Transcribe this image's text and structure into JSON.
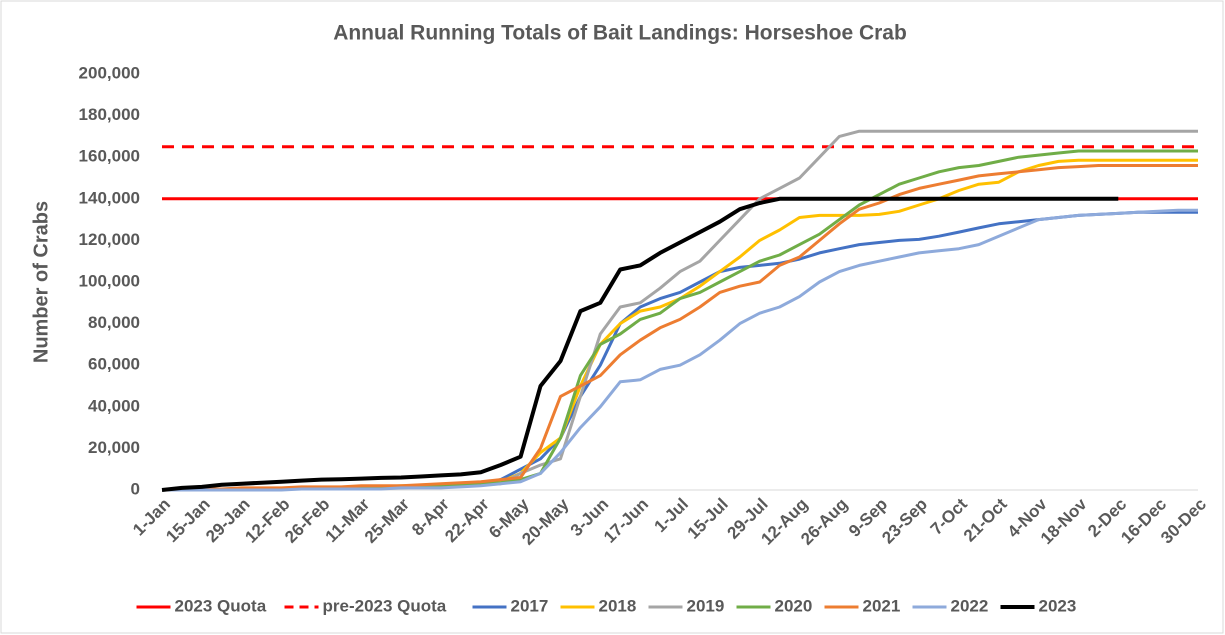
{
  "chart_data": {
    "type": "line",
    "title": "Annual Running Totals of Bait Landings: Horseshoe Crab",
    "y_label": "Number of Crabs",
    "categories": [
      "1-Jan",
      null,
      "15-Jan",
      null,
      "29-Jan",
      null,
      "12-Feb",
      null,
      "26-Feb",
      null,
      "11-Mar",
      null,
      "25-Mar",
      null,
      "8-Apr",
      null,
      "22-Apr",
      null,
      "6-May",
      null,
      "20-May",
      null,
      "3-Jun",
      null,
      "17-Jun",
      null,
      "1-Jul",
      null,
      "15-Jul",
      null,
      "29-Jul",
      null,
      "12-Aug",
      null,
      "26-Aug",
      null,
      "9-Sep",
      null,
      "23-Sep",
      null,
      "7-Oct",
      null,
      "21-Oct",
      null,
      "4-Nov",
      null,
      "18-Nov",
      null,
      "2-Dec",
      null,
      "16-Dec",
      null,
      "30-Dec"
    ],
    "ylim": [
      0,
      200000
    ],
    "yticks": [
      0,
      {
        "value": 20000,
        "label": "20,000"
      },
      {
        "value": 40000,
        "label": "40,000"
      },
      {
        "value": 60000,
        "label": "60,000"
      },
      {
        "value": 80000,
        "label": "80,000"
      },
      {
        "value": 100000,
        "label": "100,000"
      },
      {
        "value": 120000,
        "label": "120,000"
      },
      {
        "value": 140000,
        "label": "140,000"
      },
      {
        "value": 160000,
        "label": "160,000"
      },
      {
        "value": 180000,
        "label": "180,000"
      },
      {
        "value": 200000,
        "label": "200,000"
      }
    ],
    "grid": false,
    "legend": "bottom",
    "series": [
      {
        "name": "2023 Quota",
        "color": "#ff0000",
        "value": 140000,
        "dash": false
      },
      {
        "name": "pre-2023 Quota",
        "color": "#ff0000",
        "value": 165000,
        "dash": true
      },
      {
        "name": "2017",
        "color": "#4472c4",
        "values": [
          0,
          0,
          0,
          0,
          500,
          500,
          500,
          500,
          1000,
          1000,
          1000,
          1500,
          1500,
          2000,
          2000,
          2500,
          3000,
          5000,
          10000,
          15000,
          25000,
          45000,
          60000,
          80000,
          88000,
          92000,
          95000,
          100000,
          105000,
          107000,
          108000,
          109000,
          111000,
          114000,
          116000,
          118000,
          119000,
          120000,
          120500,
          122000,
          124000,
          126000,
          128000,
          129000,
          130000,
          131000,
          132000,
          132500,
          133000,
          133500,
          133500,
          133500,
          133500
        ]
      },
      {
        "name": "2018",
        "color": "#ffc000",
        "values": [
          0,
          0,
          0,
          500,
          500,
          500,
          500,
          1000,
          1000,
          1000,
          1500,
          1500,
          2000,
          2000,
          2500,
          3000,
          3500,
          4000,
          8000,
          18000,
          25000,
          50000,
          70000,
          80000,
          86000,
          88000,
          92000,
          98000,
          105000,
          112000,
          120000,
          125000,
          131000,
          132000,
          132000,
          132000,
          132500,
          134000,
          137000,
          140000,
          144000,
          147000,
          148000,
          153000,
          156000,
          158000,
          158500,
          158500,
          158500,
          158500,
          158500,
          158500,
          158500
        ]
      },
      {
        "name": "2019",
        "color": "#a5a5a5",
        "values": [
          0,
          0,
          0,
          0,
          0,
          500,
          500,
          500,
          500,
          500,
          1000,
          1000,
          1000,
          1500,
          1500,
          2000,
          2500,
          3000,
          8000,
          12000,
          15000,
          45000,
          75000,
          88000,
          90000,
          97000,
          105000,
          110000,
          120000,
          130000,
          140000,
          145000,
          150000,
          160000,
          170000,
          172500,
          172500,
          172500,
          172500,
          172500,
          172500,
          172500,
          172500,
          172500,
          172500,
          172500,
          172500,
          172500,
          172500,
          172500,
          172500,
          172500,
          172500
        ]
      },
      {
        "name": "2020",
        "color": "#70ad47",
        "values": [
          0,
          0,
          0,
          0,
          500,
          500,
          500,
          500,
          500,
          1000,
          1000,
          1000,
          1500,
          1500,
          2000,
          2500,
          3000,
          3500,
          5000,
          8000,
          25000,
          55000,
          70000,
          75000,
          82000,
          85000,
          92000,
          95000,
          100000,
          105000,
          110000,
          113000,
          118000,
          123000,
          130000,
          137000,
          142000,
          147000,
          150000,
          153000,
          155000,
          156000,
          158000,
          160000,
          161000,
          162000,
          163000,
          163000,
          163000,
          163000,
          163000,
          163000,
          163000
        ]
      },
      {
        "name": "2021",
        "color": "#ed7d31",
        "values": [
          0,
          0,
          500,
          500,
          1000,
          1000,
          1000,
          1500,
          1500,
          1500,
          2000,
          2000,
          2000,
          2500,
          3000,
          3500,
          4000,
          5000,
          6000,
          20000,
          45000,
          50000,
          55000,
          65000,
          72000,
          78000,
          82000,
          88000,
          95000,
          98000,
          100000,
          108000,
          112000,
          120000,
          128000,
          135000,
          138000,
          142000,
          145000,
          147000,
          149000,
          151000,
          152000,
          153000,
          154000,
          155000,
          155500,
          156000,
          156000,
          156000,
          156000,
          156000,
          156000
        ]
      },
      {
        "name": "2022",
        "color": "#8eaadb",
        "values": [
          0,
          0,
          0,
          0,
          0,
          0,
          0,
          500,
          500,
          500,
          500,
          500,
          1000,
          1000,
          1000,
          1500,
          2000,
          3000,
          4000,
          8000,
          18000,
          30000,
          40000,
          52000,
          53000,
          58000,
          60000,
          65000,
          72000,
          80000,
          85000,
          88000,
          93000,
          100000,
          105000,
          108000,
          110000,
          112000,
          114000,
          115000,
          116000,
          118000,
          122000,
          126000,
          130000,
          131000,
          132000,
          132500,
          133000,
          133500,
          134000,
          134500,
          134500
        ]
      },
      {
        "name": "2023",
        "color": "#000000",
        "width": 4,
        "values": [
          0,
          1000,
          1500,
          2500,
          3000,
          3500,
          4000,
          4500,
          5000,
          5200,
          5500,
          5800,
          6000,
          6500,
          7000,
          7500,
          8500,
          12000,
          16000,
          50000,
          62000,
          86000,
          90000,
          106000,
          108000,
          114000,
          119000,
          124000,
          129000,
          135000,
          138000,
          140000,
          140000,
          140000,
          140000,
          140000,
          140000,
          140000,
          140000,
          140000,
          140000,
          140000,
          140000,
          140000,
          140000,
          140000,
          140000,
          140000,
          140000,
          null,
          null,
          null,
          null
        ]
      }
    ]
  }
}
